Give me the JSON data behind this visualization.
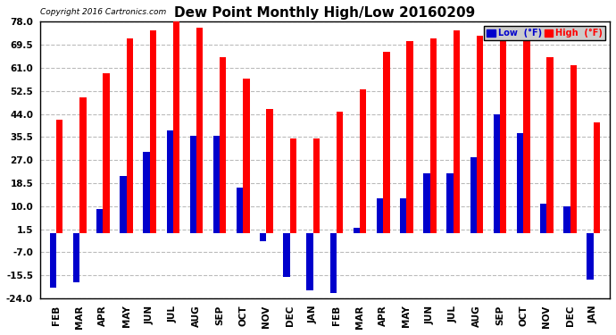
{
  "title": "Dew Point Monthly High/Low 20160209",
  "copyright": "Copyright 2016 Cartronics.com",
  "legend_low": "Low  (°F)",
  "legend_high": "High  (°F)",
  "months": [
    "FEB",
    "MAR",
    "APR",
    "MAY",
    "JUN",
    "JUL",
    "AUG",
    "SEP",
    "OCT",
    "NOV",
    "DEC",
    "JAN",
    "FEB",
    "MAR",
    "APR",
    "MAY",
    "JUN",
    "JUL",
    "AUG",
    "SEP",
    "OCT",
    "NOV",
    "DEC",
    "JAN"
  ],
  "high_values": [
    42,
    50,
    59,
    72,
    75,
    78,
    76,
    65,
    57,
    46,
    35,
    35,
    45,
    53,
    67,
    71,
    72,
    75,
    73,
    72,
    72,
    65,
    62,
    41
  ],
  "low_values": [
    -20,
    -18,
    9,
    21,
    30,
    38,
    36,
    36,
    17,
    -3,
    -16,
    -21,
    -22,
    2,
    13,
    13,
    22,
    22,
    28,
    44,
    37,
    11,
    10,
    -17
  ],
  "ylim_min": -24.0,
  "ylim_max": 78.0,
  "yticks": [
    -24.0,
    -15.5,
    -7.0,
    1.5,
    10.0,
    18.5,
    27.0,
    35.5,
    44.0,
    52.5,
    61.0,
    69.5,
    78.0
  ],
  "high_color": "#FF0000",
  "low_color": "#0000CC",
  "background_color": "#FFFFFF",
  "grid_color": "#BBBBBB",
  "bar_width": 0.28,
  "title_fontsize": 11,
  "tick_fontsize": 7.5,
  "label_fontsize": 8
}
